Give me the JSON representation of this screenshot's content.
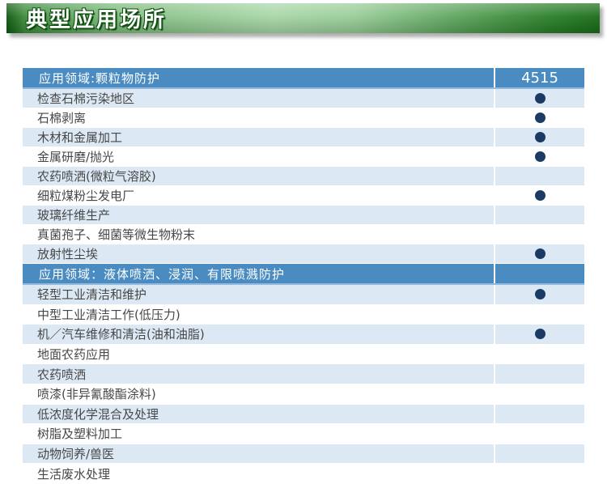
{
  "banner": {
    "title": "典型应用场所"
  },
  "product_code": "4515",
  "colors": {
    "header_blue": "#4a8cc2",
    "header_edge": "#93b9dc",
    "row_alt_blue": "#dce9f5",
    "dot_navy": "#1b3a64",
    "row_text": "#474747",
    "banner_green_dark": "#0d570d",
    "banner_green_light": "#a7d6a7"
  },
  "dot_meaning": "applicable-dot",
  "table": {
    "sections": [
      {
        "header": "应用领域:颗粒物防护",
        "header_value": "4515",
        "rows": [
          {
            "label": "检查石棉污染地区",
            "dot": true
          },
          {
            "label": "石棉剥离",
            "dot": true
          },
          {
            "label": "木材和金属加工",
            "dot": true
          },
          {
            "label": "金属研磨/抛光",
            "dot": true
          },
          {
            "label": "农药喷洒(微粒气溶胶)",
            "dot": false
          },
          {
            "label": "细粒煤粉尘发电厂",
            "dot": true
          },
          {
            "label": "玻璃纤维生产",
            "dot": false
          },
          {
            "label": "真菌孢子、细菌等微生物粉末",
            "dot": false
          },
          {
            "label": "放射性尘埃",
            "dot": true
          }
        ]
      },
      {
        "header": "应用领域：液体喷洒、浸润、有限喷溅防护",
        "header_value": "",
        "rows": [
          {
            "label": "轻型工业清洁和维护",
            "dot": true
          },
          {
            "label": "中型工业清洁工作(低压力)",
            "dot": false
          },
          {
            "label": "机／汽车维修和清洁(油和油脂)",
            "dot": true
          },
          {
            "label": "地面农药应用",
            "dot": false
          },
          {
            "label": "农药喷洒",
            "dot": false
          },
          {
            "label": "喷漆(非异氰酸酯涂料)",
            "dot": false
          },
          {
            "label": "低浓度化学混合及处理",
            "dot": false
          },
          {
            "label": "树脂及塑料加工",
            "dot": false
          },
          {
            "label": "动物饲养/兽医",
            "dot": false
          },
          {
            "label": "生活废水处理",
            "dot": false
          }
        ]
      }
    ]
  }
}
